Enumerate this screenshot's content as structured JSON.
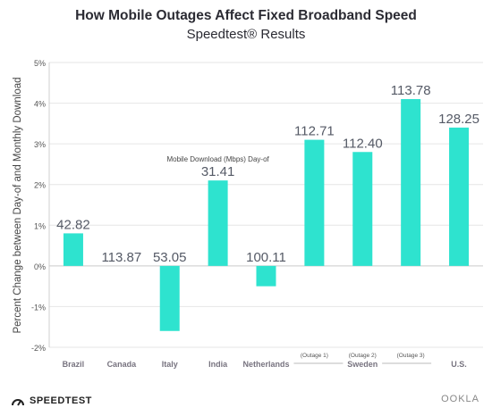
{
  "chart_data": {
    "type": "bar",
    "title": "How Mobile Outages Affect Fixed Broadband Speed",
    "subtitle": "Speedtest® Results",
    "ylabel": "Percent Change between Day-of and Monthly Download",
    "annotation": "Mobile Download (Mbps) Day-of",
    "ylim": [
      -2,
      5
    ],
    "yticks": [
      "-2%",
      "-1%",
      "0%",
      "1%",
      "2%",
      "3%",
      "4%",
      "5%"
    ],
    "grid": true,
    "bar_color": "#2ee3cf",
    "categories": [
      "Brazil",
      "Canada",
      "Italy",
      "India",
      "Netherlands",
      "Sweden (Outage 1)",
      "Sweden (Outage 2)",
      "Sweden (Outage 3)",
      "U.S."
    ],
    "values": [
      0.8,
      0.0,
      -1.6,
      2.1,
      -0.5,
      3.1,
      2.8,
      4.1,
      3.4
    ],
    "data_labels": [
      "42.82",
      "113.87",
      "53.05",
      "31.41",
      "100.11",
      "112.71",
      "112.40",
      "113.78",
      "128.25"
    ],
    "group_labels": [
      "Brazil",
      "Canada",
      "Italy",
      "India",
      "Netherlands",
      "",
      "",
      "",
      "U.S."
    ],
    "sublabels": [
      "",
      "",
      "",
      "",
      "",
      "(Outage 1)",
      "(Outage 2)",
      "(Outage 3)",
      ""
    ],
    "sweden_label": "Sweden"
  },
  "footer": {
    "brand": "SPEEDTEST",
    "logo": "OOKLA"
  }
}
